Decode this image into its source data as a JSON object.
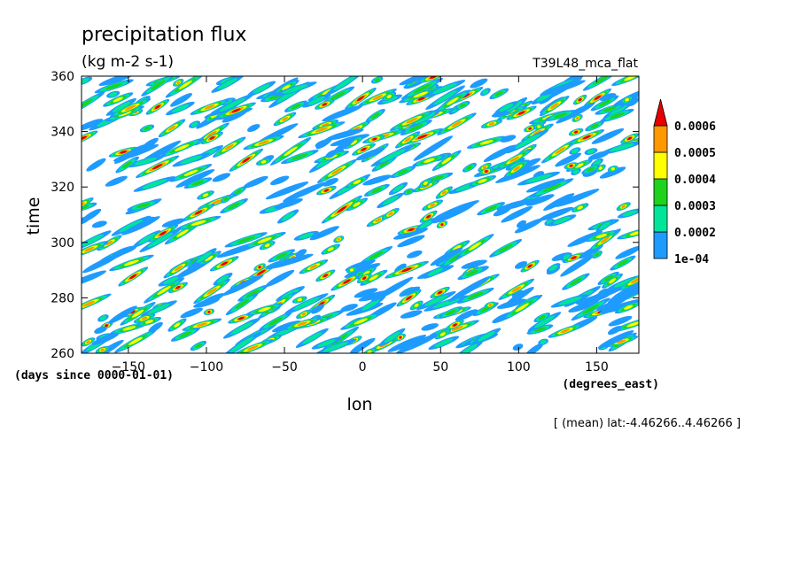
{
  "chart_data": {
    "type": "heatmap",
    "title": "precipitation flux",
    "units": "(kg m-2 s-1)",
    "dataset": "T39L48_mca_flat",
    "xlabel": "lon",
    "ylabel": "time",
    "xunits": "(degrees_east)",
    "yunits": "(days since 0000-01-01)",
    "footnote": "[ (mean) lat:-4.46266..4.46266 ]",
    "xlim": [
      -180,
      177
    ],
    "ylim": [
      260,
      360
    ],
    "xticks": [
      -150,
      -100,
      -50,
      0,
      50,
      100,
      150
    ],
    "yticks": [
      260,
      280,
      300,
      320,
      340,
      360
    ],
    "xtick_labels": [
      "−150",
      "−100",
      "−50",
      "0",
      "50",
      "100",
      "150"
    ],
    "ytick_labels": [
      "260",
      "280",
      "300",
      "320",
      "340",
      "360"
    ],
    "colorbar": {
      "levels": [
        "1e-04",
        "0.0002",
        "0.0003",
        "0.0004",
        "0.0005",
        "0.0006"
      ],
      "colors": [
        "#1e9bff",
        "#00e59a",
        "#1ed21e",
        "#ffff00",
        "#ff9900",
        "#e60000"
      ],
      "extend": "max"
    },
    "field_description": "Eastward-propagating and westward-tilted precipitation streaks; irregular convective features across all longitudes for days 260-360"
  }
}
